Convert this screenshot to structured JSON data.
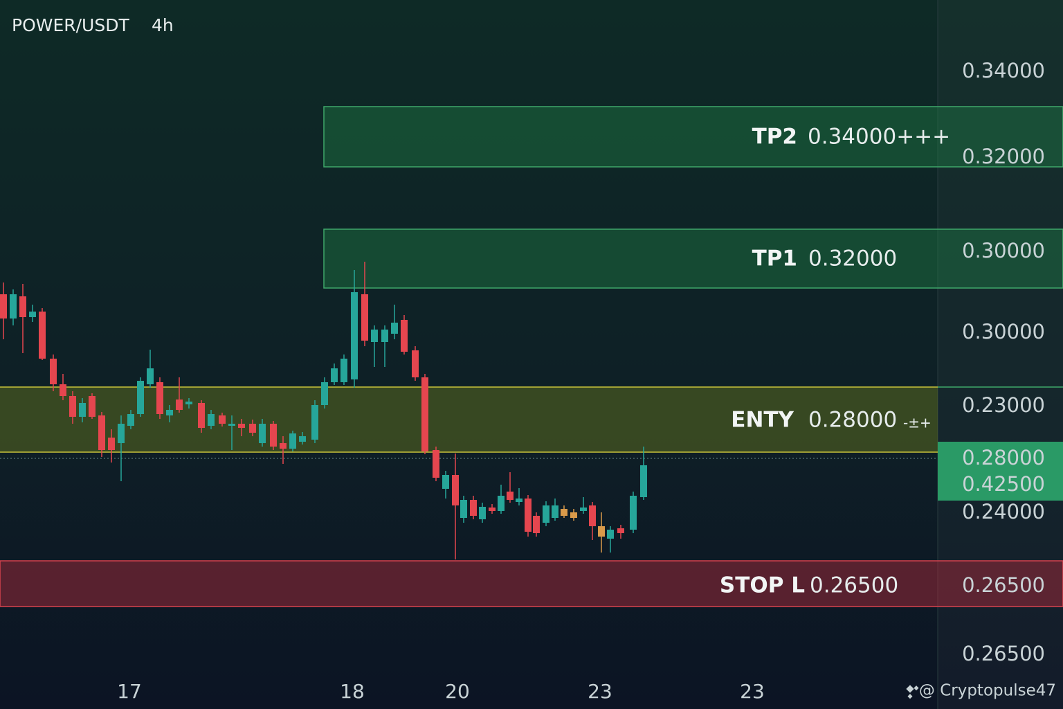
{
  "header": {
    "symbol": "POWER/USDT",
    "timeframe": "4h"
  },
  "zones": [
    {
      "name": "TP2",
      "price": "0.34000+++"
    },
    {
      "name": "TP1",
      "price": "0.32000"
    },
    {
      "name": "ENTY",
      "price": "0.28000",
      "suffix": "-±+"
    },
    {
      "name": "STOP L",
      "price": "0.26500"
    }
  ],
  "price_axis": [
    "0.34000",
    "0.32000",
    "0.30000",
    "0.30000",
    "0.23000",
    "0.28000",
    "0.42500",
    "0.24000",
    "0.26500",
    "0.26500"
  ],
  "time_axis": [
    "17",
    "18",
    "20",
    "23",
    "23"
  ],
  "watermark": "@ Cryptopulse47"
}
